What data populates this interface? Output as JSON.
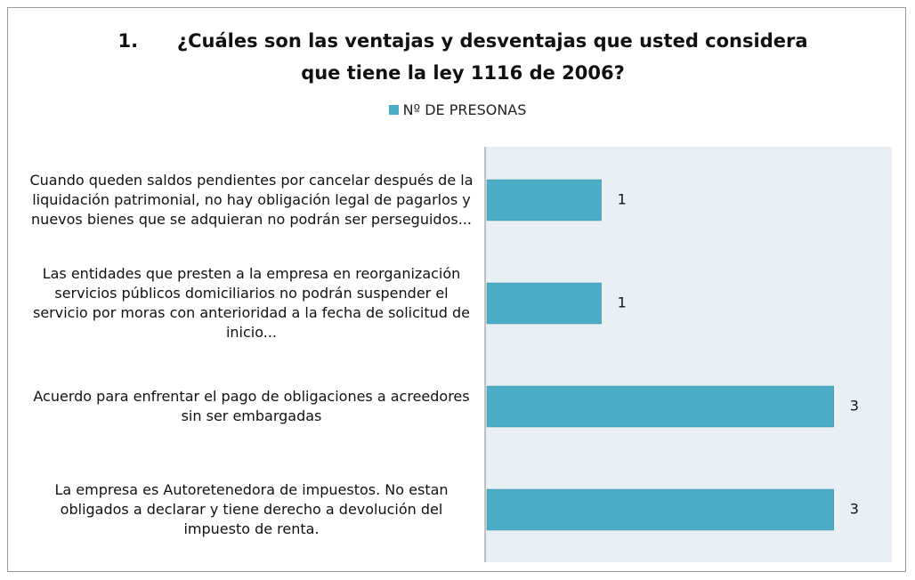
{
  "chart_data": {
    "type": "hbar",
    "title": "1.      ¿Cuáles son las ventajas y desventajas que usted considera que tiene la ley 1116 de 2006?",
    "categories": [
      "Cuando queden saldos pendientes por cancelar después de la liquidación patrimonial, no hay obligación legal de pagarlos y nuevos bienes que se adquieran no podrán ser perseguidos...",
      "Las entidades que presten a la empresa en reorganización servicios públicos domiciliarios no podrán suspender el servicio por moras con anterioridad a la fecha de solicitud de inicio...",
      "Acuerdo para enfrentar el pago de obligaciones a acreedores sin ser embargadas",
      "La empresa es Autoretenedora de impuestos. No estan obligados a declarar y tiene derecho a devolución del impuesto de renta."
    ],
    "series": [
      {
        "name": "Nº DE PRESONAS",
        "color": "#4bacc6",
        "values": [
          1,
          1,
          3,
          3
        ]
      }
    ],
    "xlim": [
      0,
      3.5
    ],
    "legend": "top"
  }
}
